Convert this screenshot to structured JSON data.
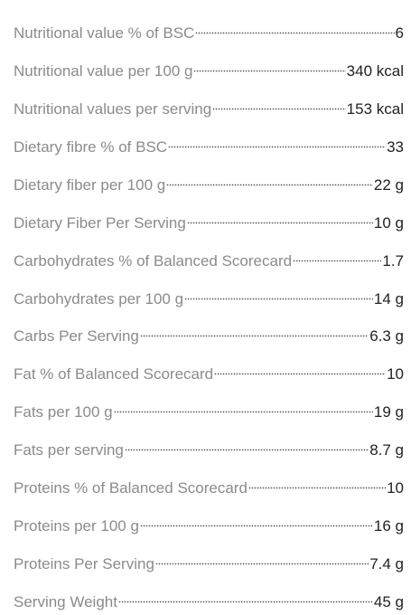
{
  "rows": [
    {
      "label": "Nutritional value % of BSC",
      "value": "6"
    },
    {
      "label": "Nutritional value per 100 g",
      "value": "340 kcal"
    },
    {
      "label": "Nutritional values per serving",
      "value": "153 kcal"
    },
    {
      "label": "Dietary fibre % of BSC",
      "value": "33"
    },
    {
      "label": "Dietary fiber per 100 g",
      "value": "22 g"
    },
    {
      "label": "Dietary Fiber Per Serving",
      "value": "10 g"
    },
    {
      "label": "Carbohydrates % of Balanced Scorecard",
      "value": "1.7"
    },
    {
      "label": "Carbohydrates per 100 g",
      "value": "14 g"
    },
    {
      "label": "Carbs Per Serving",
      "value": "6.3 g"
    },
    {
      "label": "Fat % of Balanced Scorecard",
      "value": "10"
    },
    {
      "label": "Fats per 100 g",
      "value": "19 g"
    },
    {
      "label": "Fats per serving",
      "value": "8.7 g"
    },
    {
      "label": "Proteins % of Balanced Scorecard",
      "value": "10"
    },
    {
      "label": "Proteins per 100 g",
      "value": "16 g"
    },
    {
      "label": "Proteins Per Serving",
      "value": "7.4 g"
    },
    {
      "label": "Serving Weight",
      "value": "45 g"
    }
  ]
}
